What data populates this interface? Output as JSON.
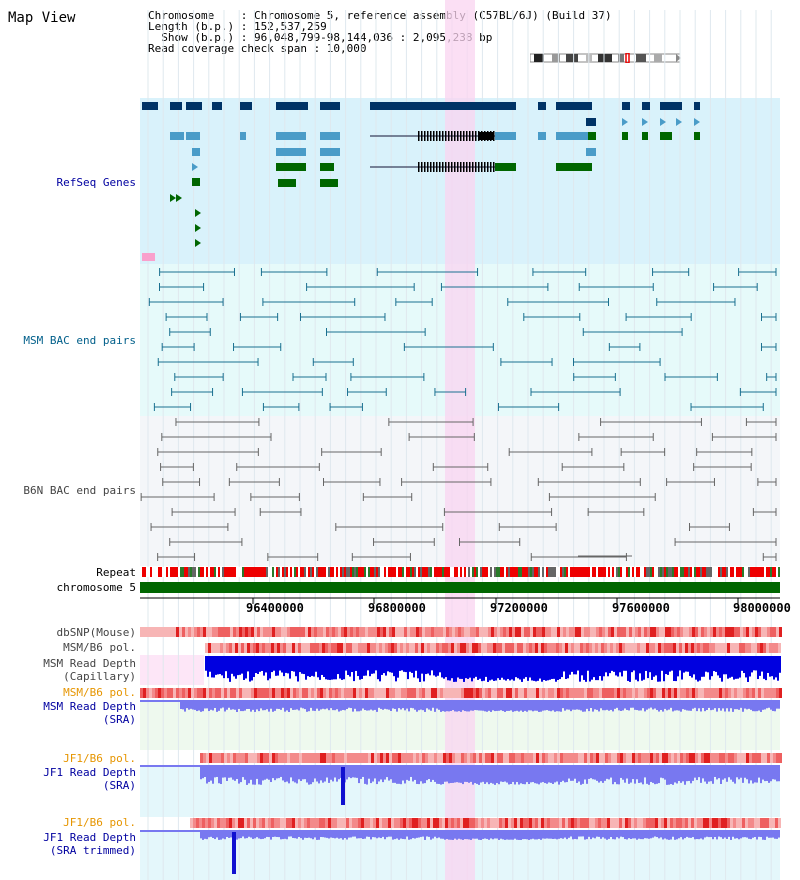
{
  "title": "Map View",
  "header": {
    "line1": "Chromosome    : Chromosome 5, reference assembly (C57BL/6J) (Build 37)",
    "line2": "Length (b.p.) : 152,537,259",
    "line3": "  Show (b.p.) : 96,048,799-98,144,036 : 2,095,238 bp",
    "line4": "Read coverage check span : 10,000"
  },
  "labels": {
    "refseq": "RefSeq Genes",
    "msm_bac": "MSM BAC end pairs",
    "b6n_bac": "B6N BAC end pairs",
    "repeat": "Repeat",
    "chromosome": "chromosome 5",
    "dbsnp": "dbSNP(Mouse)",
    "msm_b6_pol_1": "MSM/B6 pol.",
    "msm_depth_cap_1": "MSM Read Depth",
    "msm_depth_cap_2": "(Capillary)",
    "msm_b6_pol_2": "MSM/B6 pol.",
    "msm_depth_sra_1": "MSM Read Depth",
    "msm_depth_sra_2": "(SRA)",
    "jf1_pol_1": "JF1/B6 pol.",
    "jf1_depth_sra_1": "JF1 Read Depth",
    "jf1_depth_sra_2": "(SRA)",
    "jf1_pol_2": "JF1/B6 pol.",
    "jf1_depth_trim_1": "JF1 Read Depth",
    "jf1_depth_trim_2": "(SRA trimmed)"
  },
  "axis_ticks": [
    "96400000",
    "96800000",
    "97200000",
    "97600000",
    "98000000"
  ],
  "colors": {
    "refseq_bg": "#d9f2fb",
    "msm_bac_bg": "#e6fafa",
    "b6n_bac_bg": "#f4f6f9",
    "highlight": "#f9d4f0",
    "gene_dark": "#003366",
    "gene_light": "#4a9cc8",
    "gene_green": "#006600",
    "chromosome_bar": "#006600",
    "depth_capillary": "#0000e0",
    "depth_sra": "#7878f0"
  }
}
